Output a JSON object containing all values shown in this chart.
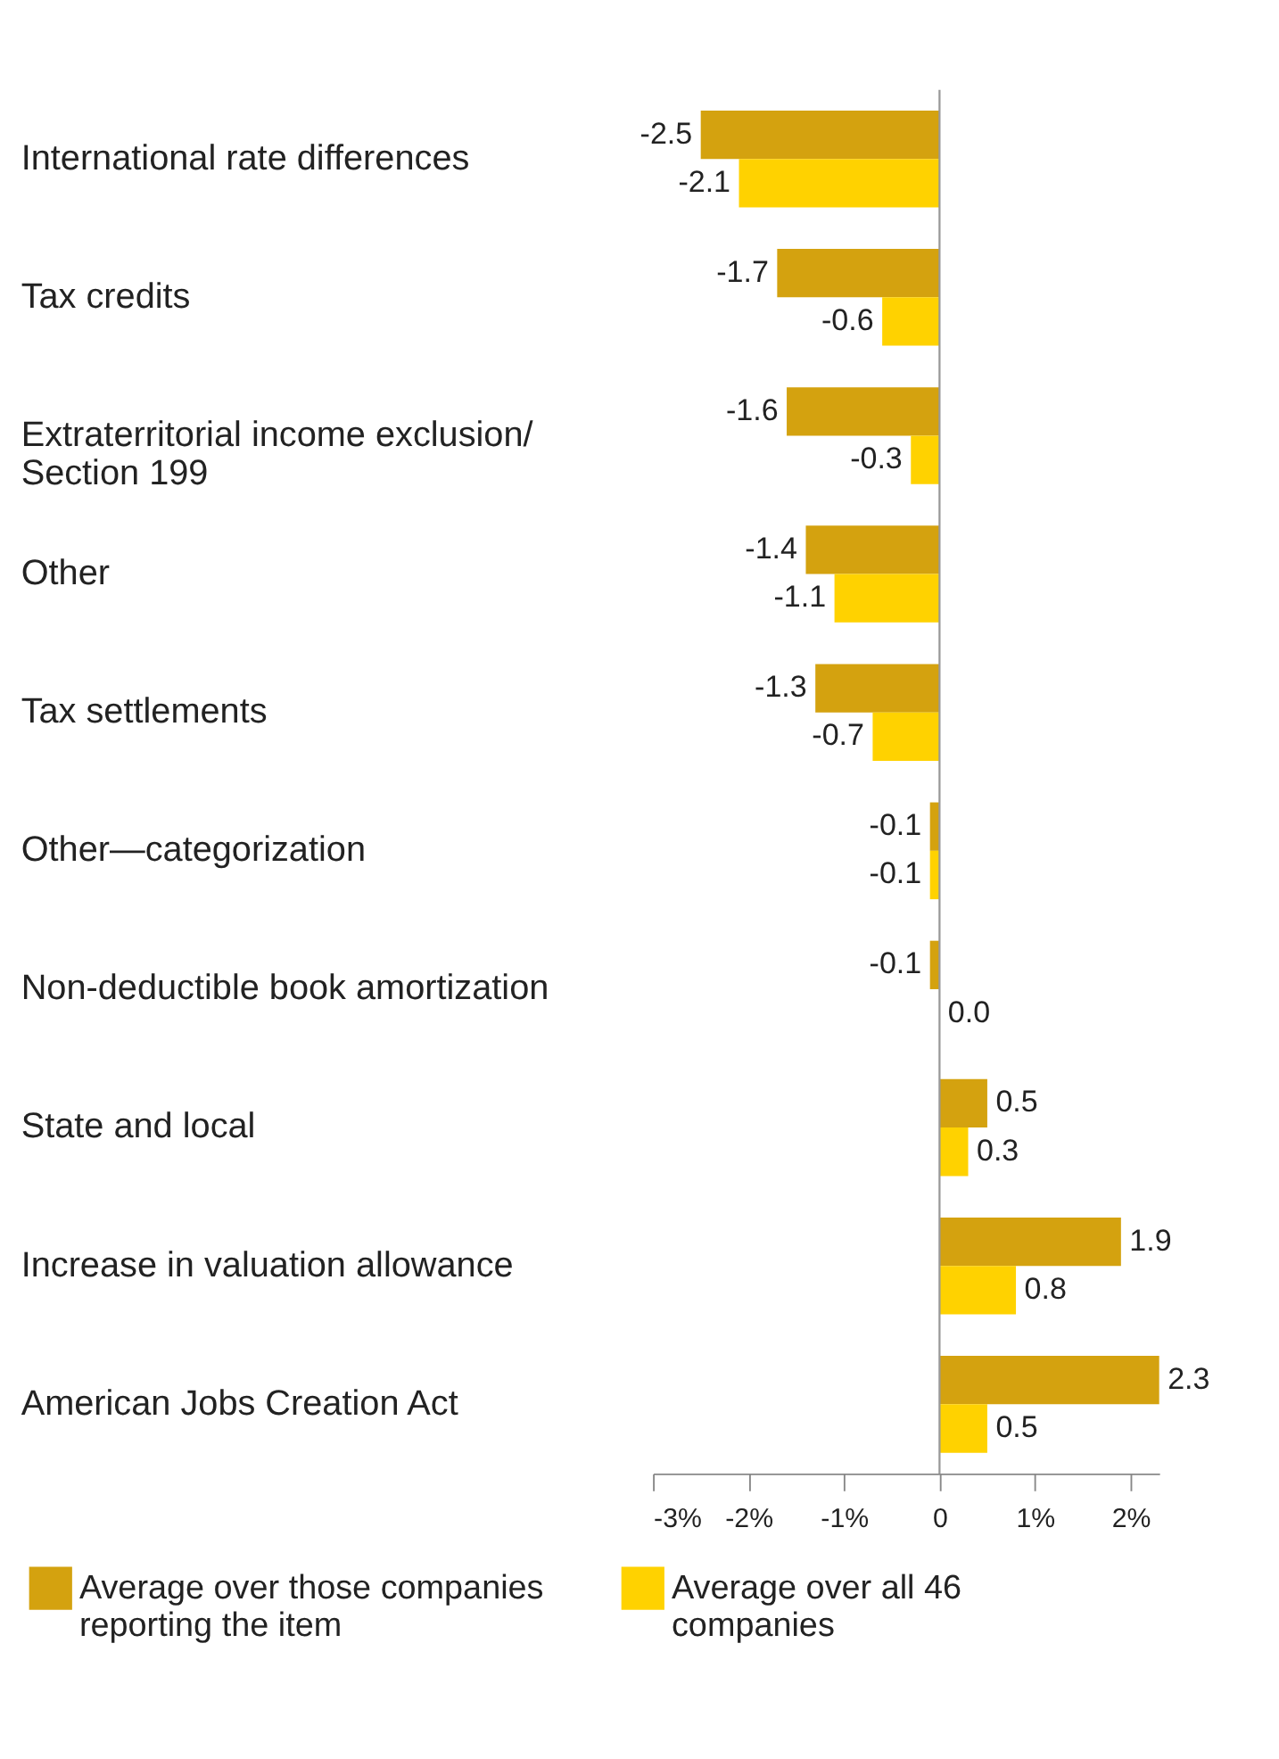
{
  "chart_data": {
    "type": "bar",
    "orientation": "horizontal",
    "categories": [
      "International rate differences",
      "Tax credits",
      "Extraterritorial income exclusion/ Section 199",
      "Other",
      "Tax settlements",
      "Other—categorization",
      "Non-deductible book amortization",
      "State and local",
      "Increase in valuation allowance",
      "American Jobs Creation Act"
    ],
    "series": [
      {
        "name": "Average over those companies reporting the item",
        "color": "#d4a20f",
        "values": [
          -2.5,
          -1.7,
          -1.6,
          -1.4,
          -1.3,
          -0.1,
          -0.1,
          0.5,
          1.9,
          2.3
        ],
        "value_labels": [
          "-2.5",
          "-1.7",
          "-1.6",
          "-1.4",
          "-1.3",
          "-0.1",
          "-0.1",
          "0.5",
          "1.9",
          "2.3"
        ]
      },
      {
        "name": "Average over all 46 companies",
        "color": "#ffd200",
        "values": [
          -2.1,
          -0.6,
          -0.3,
          -1.1,
          -0.7,
          -0.1,
          0.0,
          0.3,
          0.8,
          0.5
        ],
        "value_labels": [
          "-2.1",
          "-0.6",
          "-0.3",
          "-1.1",
          "-0.7",
          "-0.1",
          "0.0",
          "0.3",
          "0.8",
          "0.5"
        ]
      }
    ],
    "xlim": [
      -3,
      2.3
    ],
    "xticks": [
      {
        "value": -3,
        "label": "-3%"
      },
      {
        "value": -2,
        "label": "-2%"
      },
      {
        "value": -1,
        "label": "-1%"
      },
      0,
      {
        "value": 1,
        "label": "1%"
      },
      {
        "value": 2,
        "label": "2%"
      }
    ],
    "ref_lines": [
      {
        "axis": "x",
        "value": 0,
        "color": "#999999"
      }
    ],
    "grid": false,
    "legend": "bottom"
  }
}
